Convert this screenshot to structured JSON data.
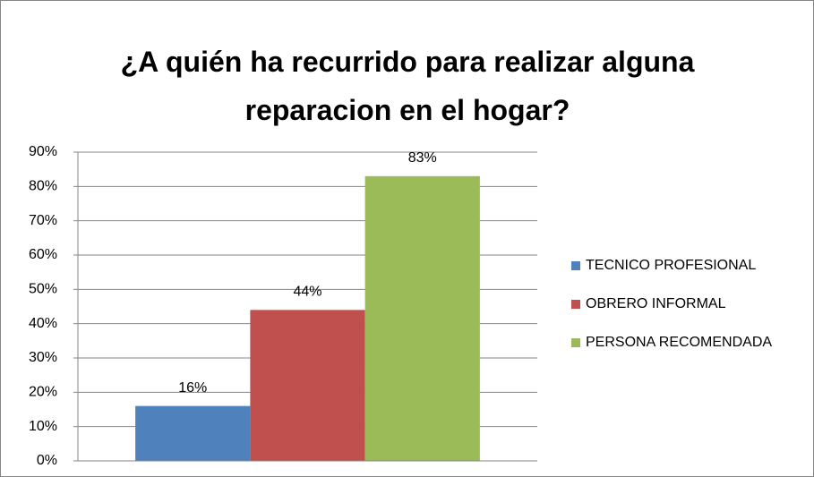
{
  "chart_data": {
    "type": "bar",
    "title": "¿A quién ha recurrido para realizar alguna reparacion en el hogar?",
    "categories": [
      null
    ],
    "series": [
      {
        "name": "TECNICO PROFESIONAL",
        "color": "#4f81bd",
        "values": [
          16
        ],
        "value_labels": [
          "16%"
        ]
      },
      {
        "name": "OBRERO INFORMAL",
        "color": "#c0504d",
        "values": [
          44
        ],
        "value_labels": [
          "44%"
        ]
      },
      {
        "name": "PERSONA RECOMENDADA",
        "color": "#9bbb59",
        "values": [
          83
        ],
        "value_labels": [
          "83%"
        ]
      }
    ],
    "ylim": [
      0,
      90
    ],
    "yticks": [
      {
        "value": 0,
        "label": "0%"
      },
      {
        "value": 10,
        "label": "10%"
      },
      {
        "value": 20,
        "label": "20%"
      },
      {
        "value": 30,
        "label": "30%"
      },
      {
        "value": 40,
        "label": "40%"
      },
      {
        "value": 50,
        "label": "50%"
      },
      {
        "value": 60,
        "label": "60%"
      },
      {
        "value": 70,
        "label": "70%"
      },
      {
        "value": 80,
        "label": "80%"
      },
      {
        "value": 90,
        "label": "90%"
      }
    ],
    "grid": true,
    "legend": "right"
  }
}
